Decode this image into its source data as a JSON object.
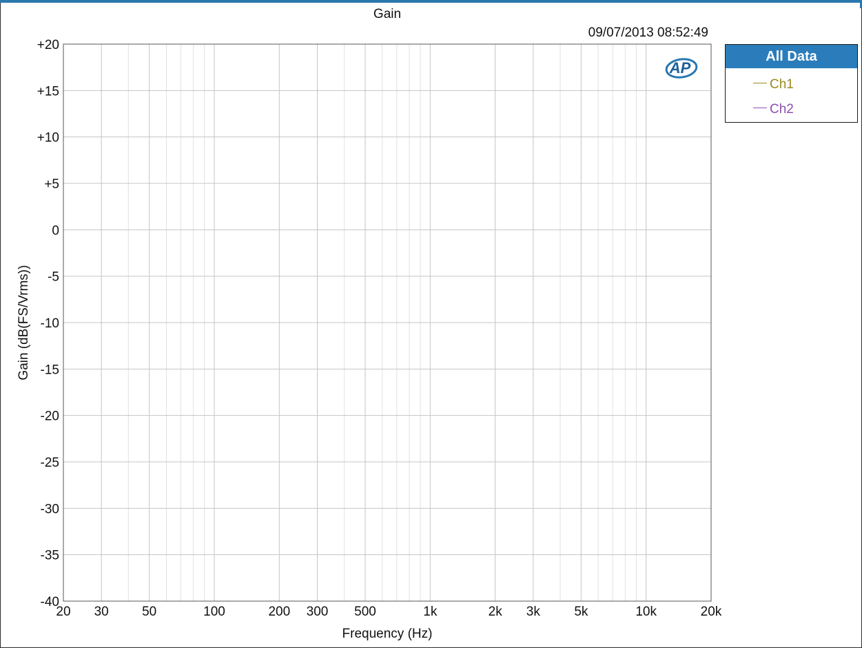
{
  "title": "Gain",
  "timestamp": "09/07/2013 08:52:49",
  "logo_text": "AP",
  "legend": {
    "header": "All Data",
    "items": [
      {
        "label": "Ch1",
        "color": "#9a8a1e"
      },
      {
        "label": "Ch2",
        "color": "#8b4fb0"
      }
    ]
  },
  "chart_data": {
    "type": "line",
    "title": "Gain",
    "xlabel": "Frequency (Hz)",
    "ylabel": "Gain (dB(FS/Vrms))",
    "xscale": "log",
    "xlim": [
      20,
      20000
    ],
    "ylim": [
      -40,
      20
    ],
    "grid": true,
    "legend_position": "right",
    "x_ticks": [
      {
        "value": 20,
        "label": "20"
      },
      {
        "value": 30,
        "label": "30"
      },
      {
        "value": 50,
        "label": "50"
      },
      {
        "value": 100,
        "label": "100"
      },
      {
        "value": 200,
        "label": "200"
      },
      {
        "value": 300,
        "label": "300"
      },
      {
        "value": 500,
        "label": "500"
      },
      {
        "value": 1000,
        "label": "1k"
      },
      {
        "value": 2000,
        "label": "2k"
      },
      {
        "value": 3000,
        "label": "3k"
      },
      {
        "value": 5000,
        "label": "5k"
      },
      {
        "value": 10000,
        "label": "10k"
      },
      {
        "value": 20000,
        "label": "20k"
      }
    ],
    "y_ticks": [
      {
        "value": 20,
        "label": "+20"
      },
      {
        "value": 15,
        "label": "+15"
      },
      {
        "value": 10,
        "label": "+10"
      },
      {
        "value": 5,
        "label": "+5"
      },
      {
        "value": 0,
        "label": "0"
      },
      {
        "value": -5,
        "label": "-5"
      },
      {
        "value": -10,
        "label": "-10"
      },
      {
        "value": -15,
        "label": "-15"
      },
      {
        "value": -20,
        "label": "-20"
      },
      {
        "value": -25,
        "label": "-25"
      },
      {
        "value": -30,
        "label": "-30"
      },
      {
        "value": -35,
        "label": "-35"
      },
      {
        "value": -40,
        "label": "-40"
      }
    ],
    "series": [
      {
        "name": "Ch1",
        "color": "#9a8a1e",
        "x": [],
        "y": []
      },
      {
        "name": "Ch2",
        "color": "#8b4fb0",
        "x": [],
        "y": []
      }
    ]
  }
}
